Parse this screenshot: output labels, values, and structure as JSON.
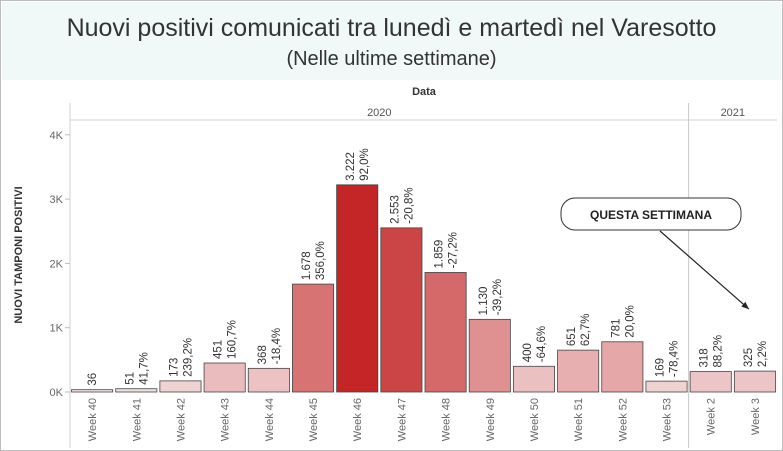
{
  "header": {
    "title": "Nuovi positivi comunicati tra lunedì e martedì nel Varesotto",
    "subtitle": "(Nelle ultime settimane)"
  },
  "chart_data": {
    "type": "bar",
    "title": "Nuovi positivi comunicati tra lunedì e martedì nel Varesotto",
    "subtitle": "(Nelle ultime settimane)",
    "xlabel": "Data",
    "ylabel": "NUOVI TAMPONI POSITIVI",
    "ylim": [
      0,
      4300
    ],
    "yticks": [
      0,
      1000,
      2000,
      3000,
      4000
    ],
    "ytick_labels": [
      "0K",
      "1K",
      "2K",
      "3K",
      "4K"
    ],
    "grid": false,
    "year_groups": [
      {
        "label": "2020",
        "count": 14
      },
      {
        "label": "2021",
        "count": 2
      }
    ],
    "categories": [
      "Week 40",
      "Week 41",
      "Week 42",
      "Week 43",
      "Week 44",
      "Week 45",
      "Week 46",
      "Week 47",
      "Week 48",
      "Week 49",
      "Week 50",
      "Week 51",
      "Week 52",
      "Week 53",
      "Week 2",
      "Week 3"
    ],
    "values": [
      36,
      51,
      173,
      451,
      368,
      1678,
      3222,
      2553,
      1859,
      1130,
      400,
      651,
      781,
      169,
      318,
      325
    ],
    "value_labels": [
      "36",
      "51",
      "173",
      "451",
      "368",
      "1.678",
      "3.222",
      "2.553",
      "1.859",
      "1.130",
      "400",
      "651",
      "781",
      "169",
      "318",
      "325"
    ],
    "pct_change_labels": [
      "",
      "41,7%",
      "239,2%",
      "160,7%",
      "-18,4%",
      "356,0%",
      "92,0%",
      "-20,8%",
      "-27,2%",
      "-39,2%",
      "-64,6%",
      "62,7%",
      "20,0%",
      "-78,4%",
      "88,2%",
      "2,2%"
    ],
    "color_scale": {
      "low": "#f4e4e4",
      "high": "#c42526"
    },
    "annotation": {
      "text": "QUESTA SETTIMANA",
      "points_to": "Week 3"
    }
  }
}
